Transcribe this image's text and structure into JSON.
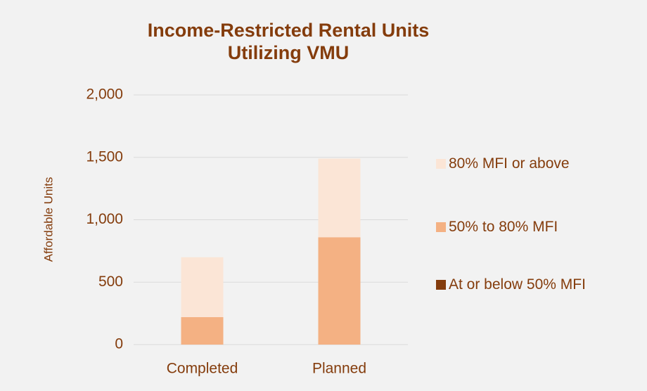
{
  "chart_data": {
    "type": "stacked_bar",
    "title": "Income-Restricted Rental Units Utilizing VMU",
    "y_label": "Affordable Units",
    "categories": [
      "Completed",
      "Planned"
    ],
    "series": [
      {
        "name": "At or below 50% MFI",
        "color": "#843c0c",
        "values": [
          0,
          0
        ]
      },
      {
        "name": "50% to 80% MFI",
        "color": "#f4b183",
        "values": [
          220,
          860
        ]
      },
      {
        "name": "80% MFI or above",
        "color": "#fbe5d6",
        "values": [
          480,
          630
        ]
      }
    ],
    "ylim": [
      0,
      2000
    ],
    "yticks": [
      0,
      500,
      {
        "value": 1000,
        "label": "1,000"
      },
      {
        "value": 1500,
        "label": "1,500"
      },
      {
        "value": 2000,
        "label": "2,000"
      }
    ],
    "grid": true,
    "legend": "right"
  }
}
